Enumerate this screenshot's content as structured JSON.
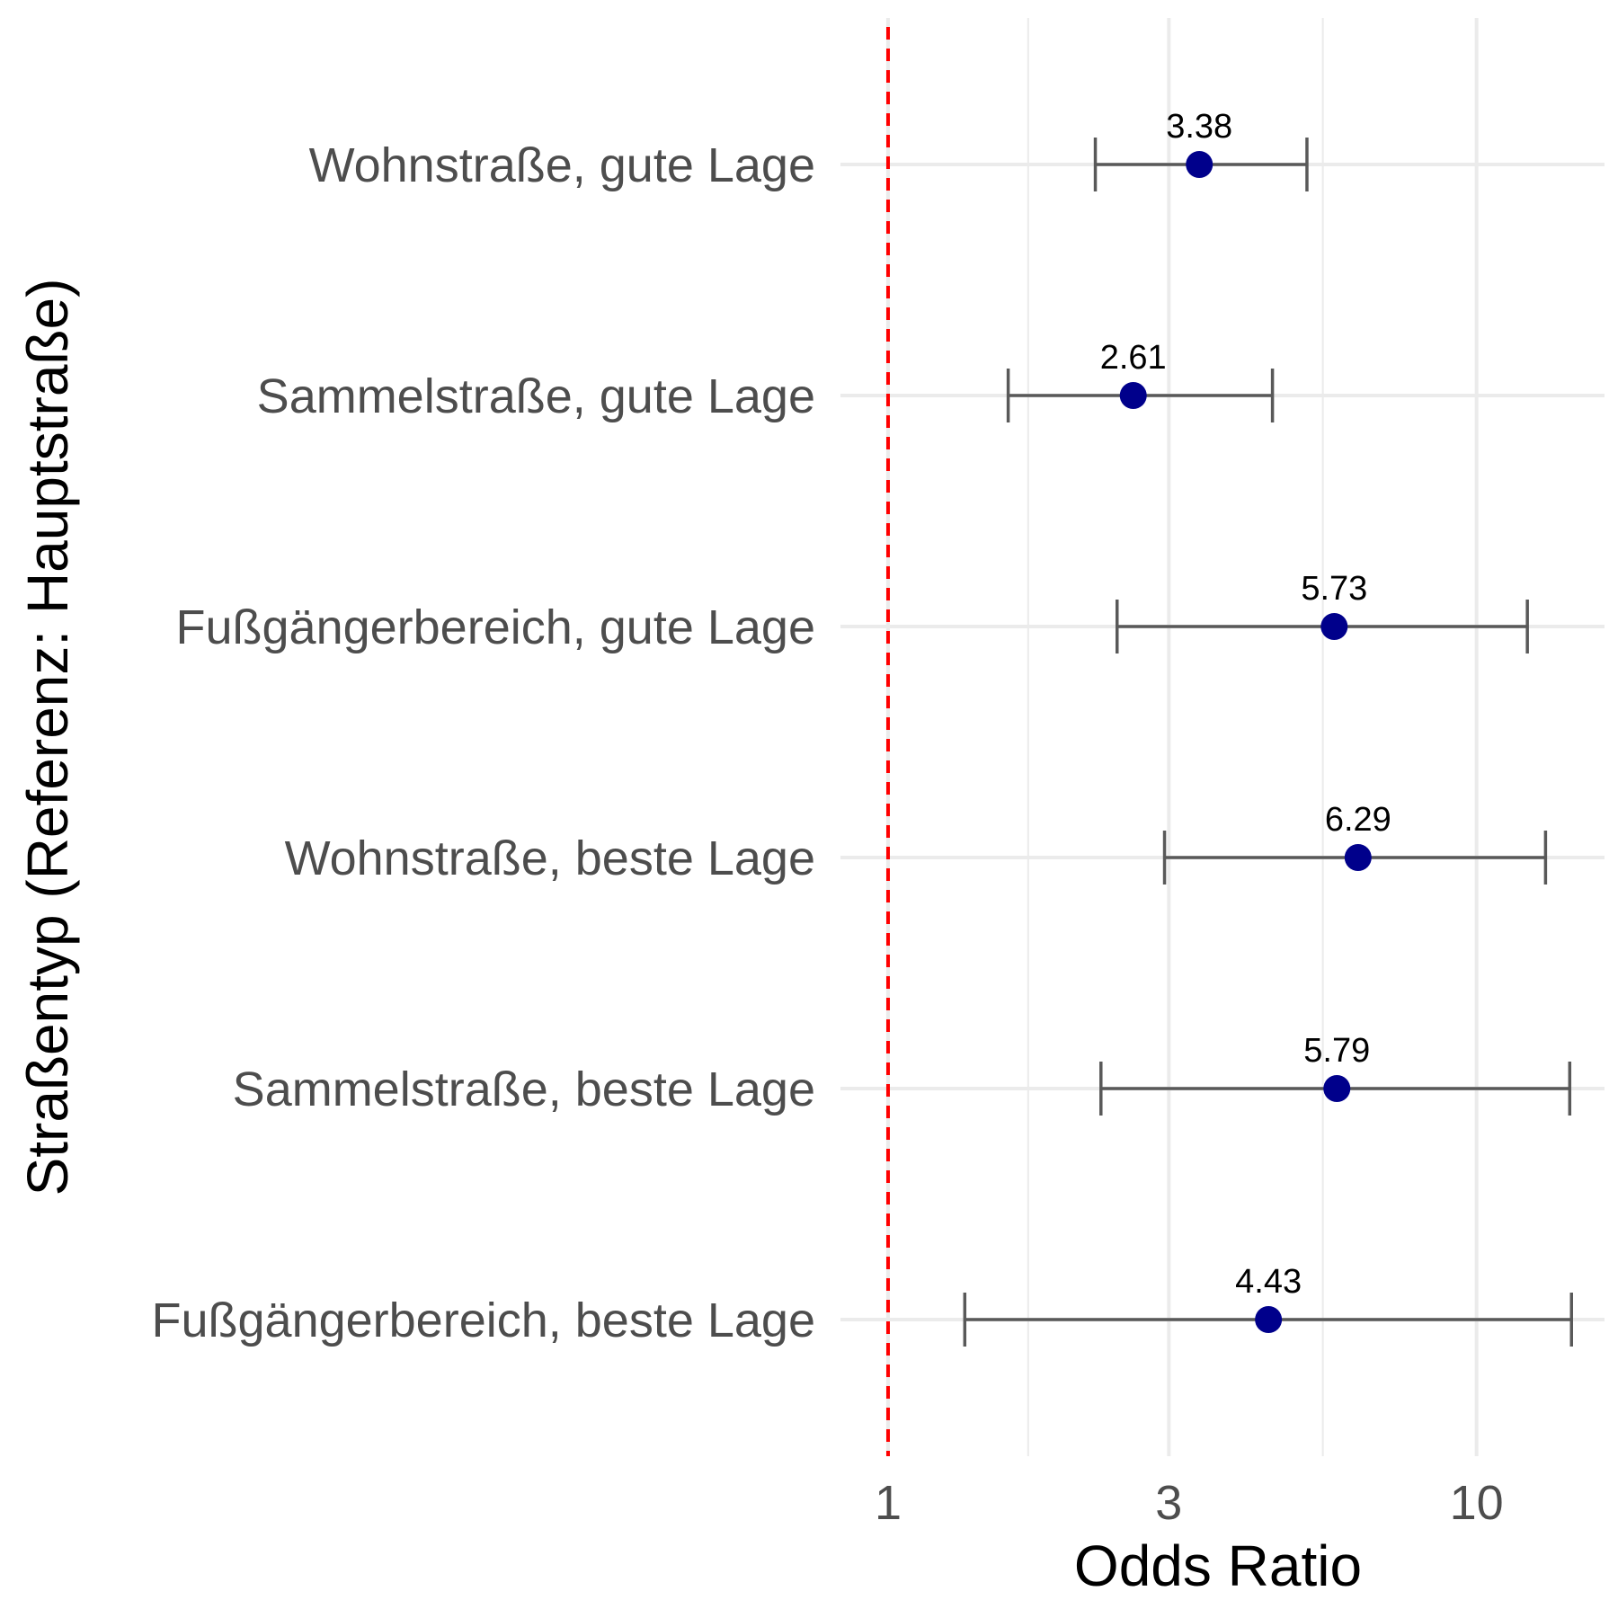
{
  "chart_data": {
    "type": "scatter",
    "subtype": "forest-plot",
    "title": "",
    "xlabel": "Odds Ratio",
    "ylabel": "Straßentyp (Referenz: Hauptstraße)",
    "x_scale": "log10",
    "xlim": [
      0.83,
      16.5
    ],
    "x_ticks": [
      1,
      3,
      10
    ],
    "x_tick_labels": [
      "1",
      "3",
      "10"
    ],
    "x_minor_gridlines": [
      1.73,
      5.48
    ],
    "reference_line": {
      "x": 1,
      "style": "dashed",
      "color": "#ff0000"
    },
    "grid": true,
    "legend": "none",
    "categories": [
      "Wohnstraße, gute Lage",
      "Sammelstraße, gute Lage",
      "Fußgängerbereich, gute Lage",
      "Wohnstraße, beste Lage",
      "Sammelstraße, beste Lage",
      "Fußgängerbereich, beste Lage"
    ],
    "values": [
      3.38,
      2.61,
      5.73,
      6.29,
      5.79,
      4.43
    ],
    "value_labels": [
      "3.38",
      "2.61",
      "5.73",
      "6.29",
      "5.79",
      "4.43"
    ],
    "ci_lower": [
      2.25,
      1.6,
      2.45,
      2.95,
      2.3,
      1.35
    ],
    "ci_upper": [
      5.15,
      4.5,
      12.2,
      13.1,
      14.4,
      14.5
    ],
    "colors": {
      "point": "#00008b",
      "errorbar": "#595959",
      "grid": "#ebebeb",
      "reference": "#ff0000"
    }
  }
}
